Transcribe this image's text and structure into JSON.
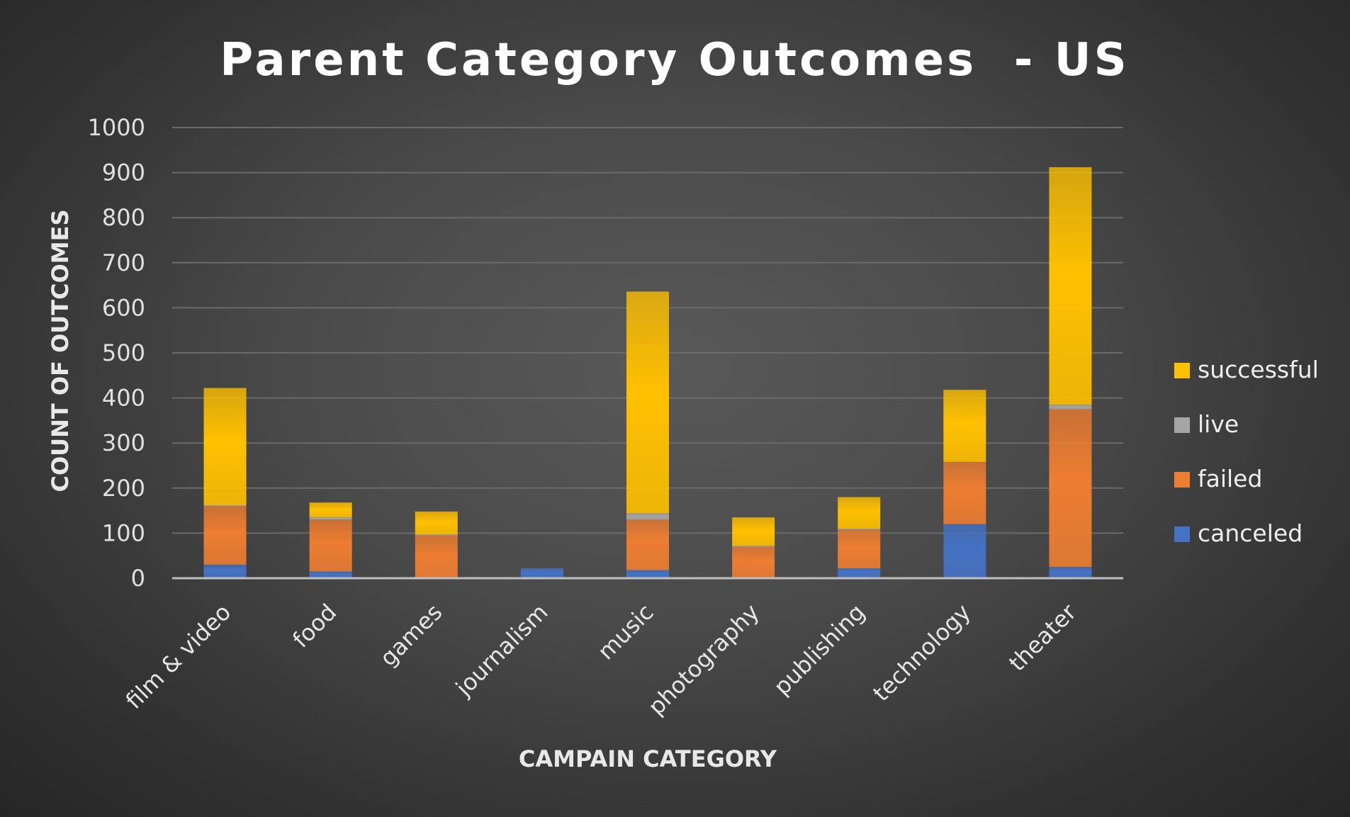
{
  "chart_data": {
    "type": "bar",
    "stacked": true,
    "title": "Parent Category Outcomes  - US",
    "xlabel": "CAMPAIN CATEGORY",
    "ylabel": "COUNT OF OUTCOMES",
    "ylim": [
      0,
      1000
    ],
    "yticks": [
      0,
      100,
      200,
      300,
      400,
      500,
      600,
      700,
      800,
      900,
      1000
    ],
    "grid": true,
    "legend_position": "right",
    "categories": [
      "film & video",
      "food",
      "games",
      "journalism",
      "music",
      "photography",
      "publishing",
      "technology",
      "theater"
    ],
    "series": [
      {
        "name": "canceled",
        "color": "#4472c4",
        "values": [
          30,
          15,
          0,
          22,
          18,
          0,
          22,
          120,
          25
        ]
      },
      {
        "name": "failed",
        "color": "#ed7d31",
        "values": [
          130,
          115,
          95,
          0,
          112,
          70,
          86,
          138,
          350
        ]
      },
      {
        "name": "live",
        "color": "#a5a5a5",
        "values": [
          2,
          5,
          2,
          0,
          14,
          2,
          2,
          0,
          10
        ]
      },
      {
        "name": "successful",
        "color": "#ffc000",
        "values": [
          260,
          33,
          51,
          0,
          492,
          63,
          70,
          160,
          527
        ]
      }
    ]
  }
}
